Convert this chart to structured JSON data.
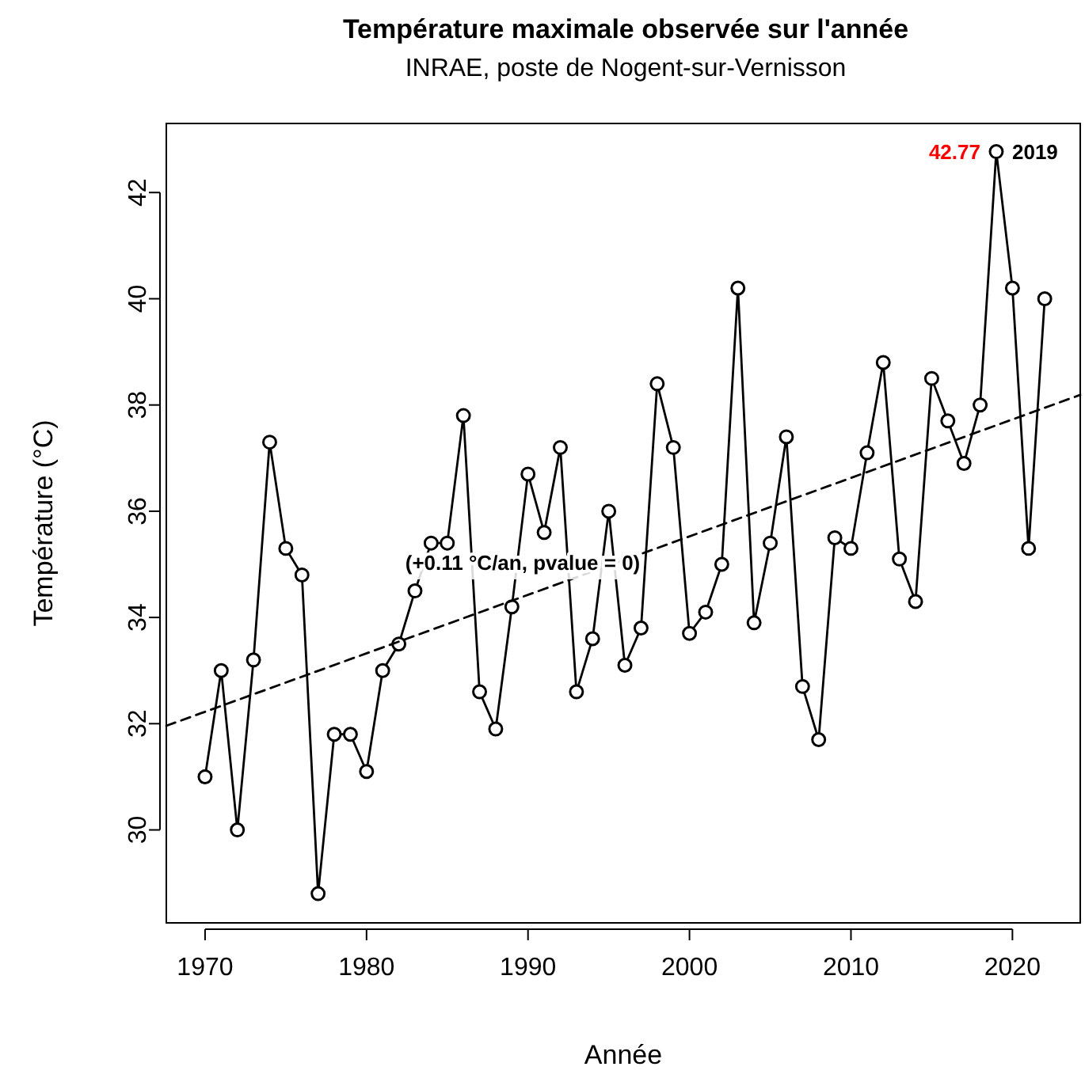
{
  "chart_data": {
    "type": "line",
    "title": "Température maximale observée sur l'année",
    "subtitle": "INRAE, poste de Nogent-sur-Vernisson",
    "xlabel": "Année",
    "ylabel": "Température (°C)",
    "xlim": [
      1967.6,
      2024.2
    ],
    "xticks": [
      1970,
      1980,
      1990,
      2000,
      2010,
      2020
    ],
    "ylim": [
      28.25,
      43.3
    ],
    "yticks": [
      30,
      32,
      34,
      36,
      38,
      40,
      42
    ],
    "grid": false,
    "series": [
      {
        "color": "#000000",
        "marker": "circle",
        "line_style": "solid",
        "x": [
          1970,
          1971,
          1972,
          1973,
          1974,
          1975,
          1976,
          1977,
          1978,
          1979,
          1980,
          1981,
          1982,
          1983,
          1984,
          1985,
          1986,
          1987,
          1988,
          1989,
          1990,
          1991,
          1992,
          1993,
          1994,
          1995,
          1996,
          1997,
          1998,
          1999,
          2000,
          2001,
          2002,
          2003,
          2004,
          2005,
          2006,
          2007,
          2008,
          2009,
          2010,
          2011,
          2012,
          2013,
          2014,
          2015,
          2016,
          2017,
          2018,
          2019,
          2020,
          2021,
          2022
        ],
        "values": [
          31.0,
          33.0,
          30.0,
          33.2,
          37.3,
          35.3,
          34.8,
          28.8,
          31.8,
          31.8,
          31.1,
          33.0,
          33.5,
          34.5,
          35.4,
          35.4,
          37.8,
          32.6,
          31.9,
          34.2,
          36.7,
          35.6,
          37.2,
          32.6,
          33.6,
          36.0,
          33.1,
          33.8,
          38.4,
          37.2,
          33.7,
          34.1,
          35.0,
          40.2,
          33.9,
          35.4,
          37.4,
          32.7,
          31.7,
          35.5,
          35.3,
          37.1,
          38.8,
          35.1,
          34.3,
          38.5,
          37.7,
          36.9,
          38.0,
          42.77,
          40.2,
          35.3,
          40.0
        ],
        "value_labels": [
          null,
          null,
          null,
          null,
          null,
          null,
          null,
          null,
          null,
          null,
          null,
          null,
          null,
          null,
          null,
          null,
          null,
          null,
          null,
          null,
          null,
          null,
          null,
          null,
          null,
          null,
          null,
          null,
          null,
          null,
          null,
          null,
          null,
          null,
          null,
          null,
          null,
          null,
          null,
          null,
          null,
          null,
          null,
          null,
          null,
          null,
          null,
          null,
          null,
          "42.77",
          null,
          null,
          null
        ]
      },
      {
        "color": "#000000",
        "marker": "none",
        "line_style": "dashed",
        "x": [
          1967.6,
          2024.2
        ],
        "values": [
          31.96,
          38.19
        ]
      }
    ],
    "annotations": [
      "(+0.11 °C/an, pvalue = 0)",
      {
        "text": "2019",
        "x": 2019,
        "y": 42.77
      }
    ]
  }
}
